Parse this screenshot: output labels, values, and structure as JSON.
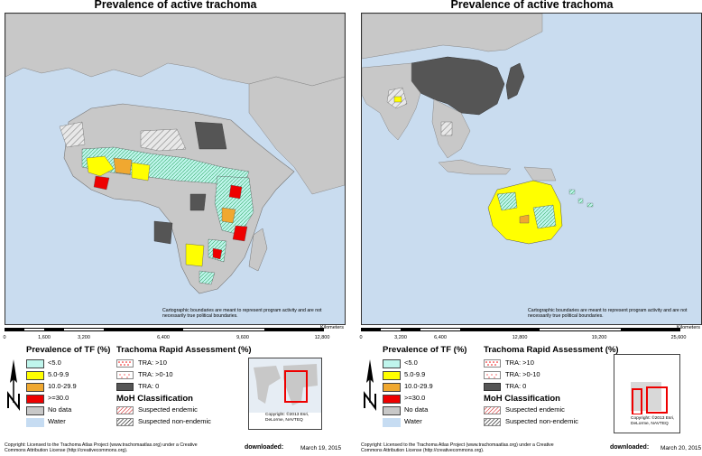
{
  "panels": [
    {
      "title": "Prevalence of active trachoma",
      "disclaimer": "Cartographic boundaries are meant to represent program activity and are not necessarily true political boundaries.",
      "scale": {
        "unit": "Kilometers",
        "ticks": [
          "0",
          "1,600",
          "3,200",
          "6,400",
          "9,600",
          "12,800"
        ]
      },
      "downloaded_label": "downloaded:",
      "downloaded_date": "March 19, 2015",
      "inset_copyright": "Copyright: ©2013 Esri, DeLorme, NAVTEQ"
    },
    {
      "title": "Prevalence of active trachoma",
      "disclaimer": "Cartographic boundaries are meant to represent program activity and are not necessarily true political boundaries.",
      "scale": {
        "unit": "Kilometers",
        "ticks": [
          "0",
          "3,200",
          "6,400",
          "12,800",
          "19,200",
          "25,600"
        ]
      },
      "downloaded_label": "downloaded:",
      "downloaded_date": "March 20, 2015",
      "inset_copyright": "Copyright: ©2013 Esri, DeLorme, NAVTEQ"
    }
  ],
  "legend": {
    "tf_title": "Prevalence of TF (%)",
    "tf_items": [
      {
        "label": "<5.0",
        "color": "#bff5ec"
      },
      {
        "label": "5.0-9.9",
        "color": "#ffff00"
      },
      {
        "label": "10.0-29.9",
        "color": "#f0a830"
      },
      {
        "label": ">=30.0",
        "color": "#ee0000"
      },
      {
        "label": "No data",
        "color": "#c8c8c8"
      },
      {
        "label": "Water",
        "color": "#c6dcf2"
      }
    ],
    "tra_title": "Trachoma Rapid Assessment (%)",
    "tra_items": [
      {
        "label": "TRA: >10"
      },
      {
        "label": "TRA: >0-10"
      },
      {
        "label": "TRA: 0"
      }
    ],
    "moh_title": "MoH Classification",
    "moh_items": [
      {
        "label": "Suspected endemic"
      },
      {
        "label": "Suspected non-endemic"
      }
    ],
    "north_letter": "N"
  },
  "footer_text": "Copyright: Licensed to the Trachoma Atlas Project (www.trachomaatlas.org) under a Creative Commons Attribution License (http://creativecommons.org).",
  "colors": {
    "water": "#c9dcef",
    "land_nodata": "#c8c8c8",
    "tra_zero": "#555555",
    "lt5": "#bff5ec",
    "y5_9": "#ffff00",
    "y10_29": "#f0a830",
    "ge30": "#ee0000",
    "highlight_box": "#ee0000"
  }
}
